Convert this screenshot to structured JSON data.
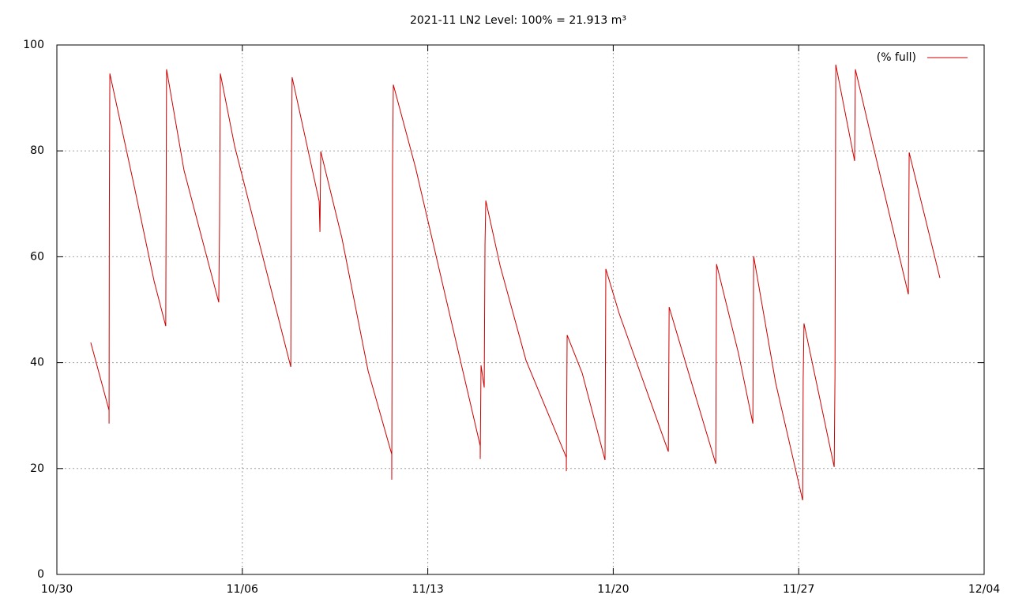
{
  "chart_data": {
    "type": "line",
    "title": "2021-11 LN2 Level: 100% = 21.913 m³",
    "x": [
      1.28,
      1.97,
      1.97,
      1.98,
      2.0,
      2.92,
      3.67,
      4.11,
      4.14,
      4.8,
      6.11,
      6.14,
      6.17,
      6.71,
      8.83,
      8.85,
      8.88,
      9.9,
      9.93,
      9.96,
      10.76,
      11.75,
      12.64,
      12.64,
      12.67,
      12.7,
      13.54,
      15.98,
      15.98,
      16.01,
      16.13,
      16.16,
      16.19,
      16.73,
      17.71,
      19.23,
      19.23,
      19.26,
      19.83,
      20.69,
      20.72,
      21.23,
      23.08,
      23.11,
      23.79,
      24.87,
      24.9,
      25.73,
      26.27,
      26.3,
      27.13,
      28.15,
      28.17,
      28.2,
      29.34,
      29.37,
      29.4,
      30.11,
      30.14,
      30.8,
      32.14,
      32.17,
      33.33
    ],
    "series": [
      {
        "name": "(% full)",
        "color": "#cc0000",
        "values": [
          43.8,
          31.0,
          28.5,
          68.3,
          94.6,
          73.3,
          55.4,
          46.9,
          95.4,
          76.3,
          51.4,
          66.0,
          94.6,
          80.9,
          39.2,
          75.1,
          93.9,
          70.5,
          64.7,
          79.9,
          63.5,
          38.4,
          22.7,
          17.9,
          77.2,
          92.5,
          76.8,
          24.3,
          21.8,
          39.5,
          35.3,
          62.3,
          70.6,
          58.3,
          40.4,
          22.1,
          19.5,
          45.2,
          38.0,
          21.6,
          57.7,
          49.2,
          23.2,
          50.5,
          39.0,
          20.9,
          58.6,
          41.7,
          28.5,
          60.1,
          36.2,
          14.0,
          37.0,
          47.4,
          20.3,
          37.3,
          96.3,
          78.1,
          95.4,
          81.2,
          52.9,
          79.7,
          56.0
        ]
      }
    ],
    "xlim": [
      0,
      35
    ],
    "xticks": [
      {
        "value": 0,
        "label": "10/30"
      },
      {
        "value": 7,
        "label": "11/06"
      },
      {
        "value": 14,
        "label": "11/13"
      },
      {
        "value": 21,
        "label": "11/20"
      },
      {
        "value": 28,
        "label": "11/27"
      },
      {
        "value": 35,
        "label": "12/04"
      }
    ],
    "ylim": [
      0,
      100
    ],
    "yticks": [
      0,
      20,
      40,
      60,
      80,
      100
    ],
    "grid": true,
    "legend": "top-right"
  }
}
